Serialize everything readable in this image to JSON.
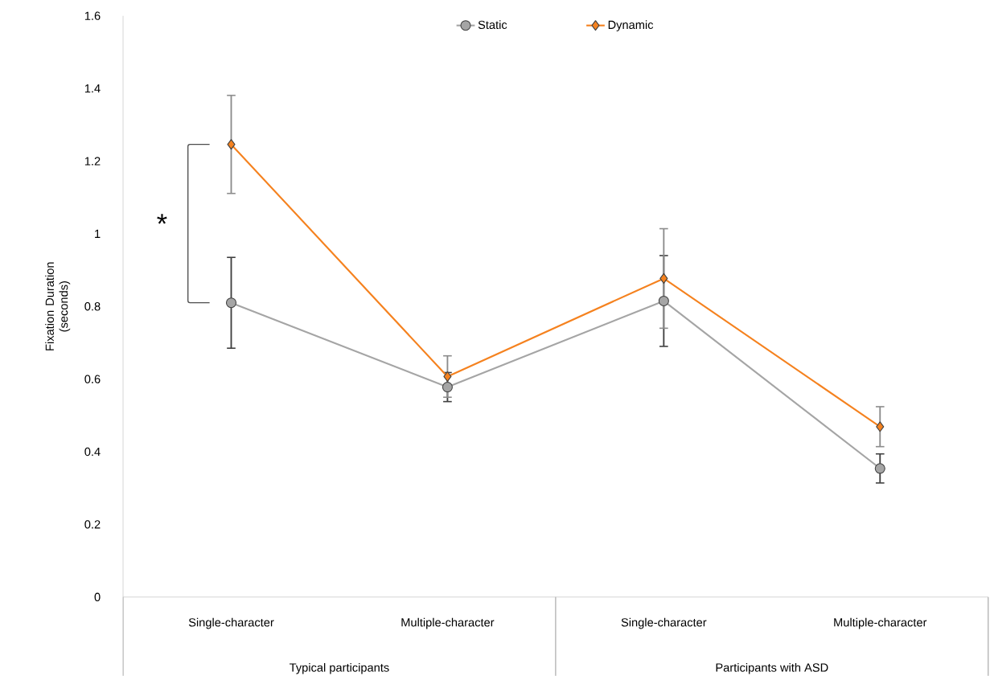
{
  "chart_data": {
    "type": "line",
    "ylabel": "Fixation Duration (seconds)",
    "categories": [
      "Single-character",
      "Multiple-character",
      "Single-character",
      "Multiple-character"
    ],
    "series": [
      {
        "name": "Static",
        "color": "#a5a5a5",
        "marker": "circle",
        "values": [
          0.81,
          0.578,
          0.815,
          0.354
        ],
        "errors": [
          0.125,
          0.04,
          0.125,
          0.04
        ]
      },
      {
        "name": "Dynamic",
        "color": "#f5821f",
        "marker": "diamond",
        "values": [
          1.246,
          0.607,
          0.877,
          0.469
        ],
        "errors": [
          0.135,
          0.057,
          0.137,
          0.055
        ]
      }
    ],
    "ylim": [
      0,
      1.6
    ],
    "yticks": [
      0,
      0.2,
      0.4,
      0.6,
      0.8,
      1,
      1.2,
      1.4,
      1.6
    ],
    "legend": "top",
    "annotations": [
      "*",
      "Typical participants",
      "Participants with ASD"
    ]
  }
}
